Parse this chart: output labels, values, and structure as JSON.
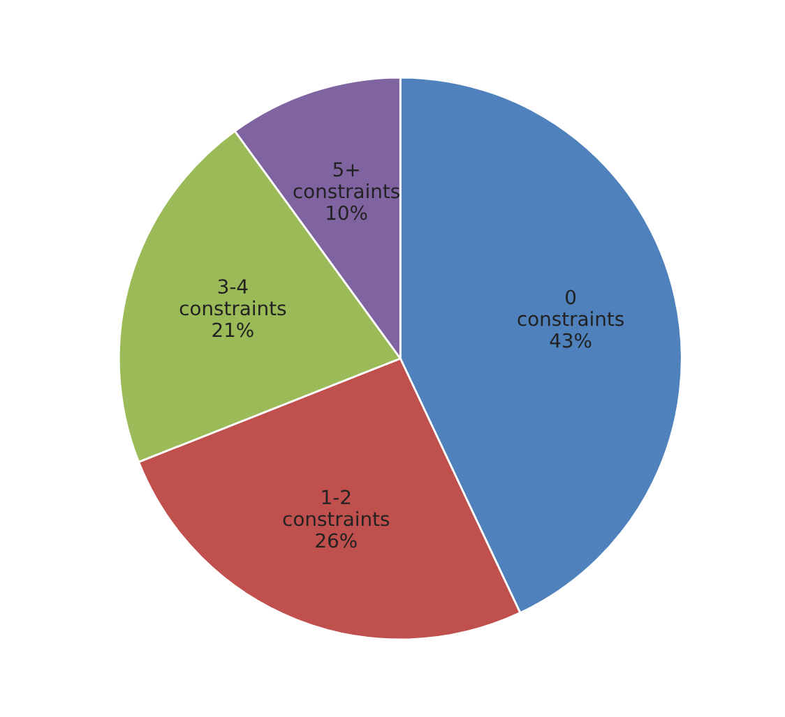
{
  "chart_data": {
    "type": "pie",
    "categories": [
      "0 constraints",
      "1-2 constraints",
      "3-4 constraints",
      "5+ constraints"
    ],
    "values": [
      43,
      26,
      21,
      10
    ],
    "value_labels": [
      "43%",
      "26%",
      "21%",
      "10%"
    ],
    "colors": [
      "#4f81bd",
      "#c0504d",
      "#9bbb59",
      "#8064a2"
    ]
  }
}
